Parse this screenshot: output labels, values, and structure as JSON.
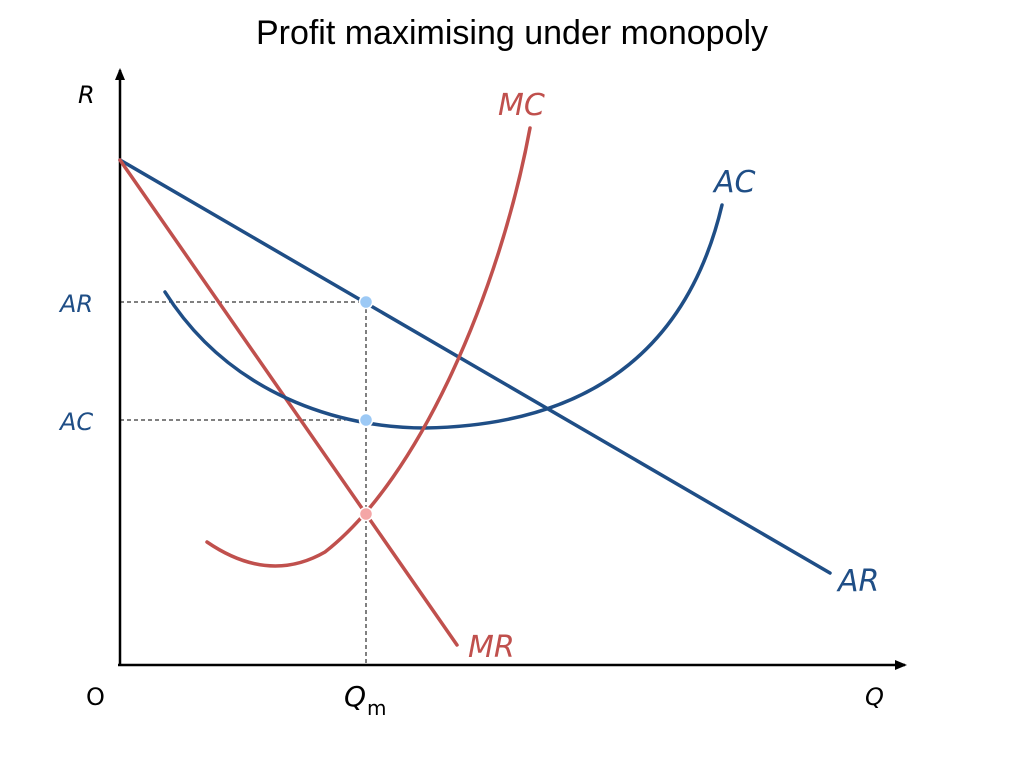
{
  "title": "Profit maximising under monopoly",
  "axes": {
    "y_label": "R",
    "x_label": "Q",
    "origin_label": "O"
  },
  "curves": {
    "mc": "MC",
    "ac": "AC",
    "ar": "AR",
    "mr": "MR"
  },
  "markers": {
    "ar_level": "AR",
    "ac_level": "AC",
    "qm_main": "Q",
    "qm_sub": "m"
  },
  "colors": {
    "blue": "#1f4e86",
    "red": "#c0504d",
    "point_blue": "#9cc9f5",
    "point_red": "#f4a6a6"
  }
}
